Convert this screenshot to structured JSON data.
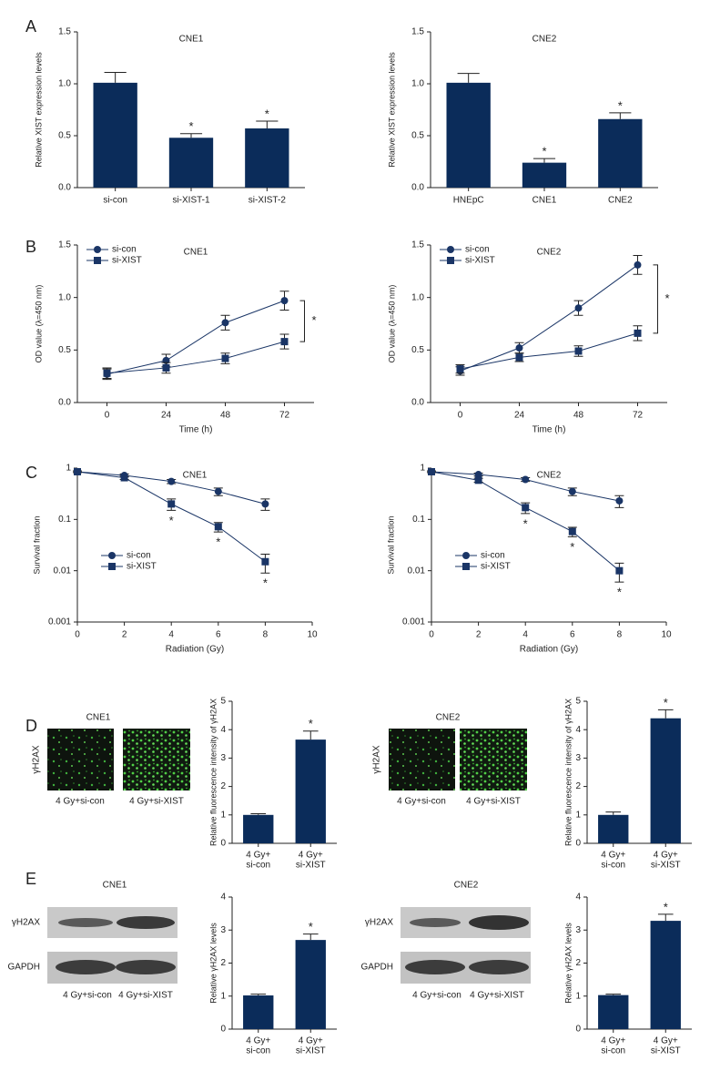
{
  "chart_data": [
    {
      "type": "bar",
      "title": "CNE1",
      "ylabel": "Relative XIST expression levels",
      "categories": [
        "si-con",
        "si-XIST-1",
        "si-XIST-2"
      ],
      "values": [
        1.01,
        0.48,
        0.57
      ],
      "errors": [
        0.1,
        0.04,
        0.07
      ],
      "significance": [
        null,
        "*",
        "*"
      ],
      "color": "#0b2c5a",
      "ylim": [
        0,
        1.5
      ],
      "yticks": [
        {
          "value": 0,
          "label": "0.0"
        },
        {
          "value": 0.5,
          "label": "0.5"
        },
        {
          "value": 1,
          "label": "1.0"
        },
        {
          "value": 1.5,
          "label": "1.5"
        }
      ]
    },
    {
      "type": "bar",
      "title": "CNE2",
      "ylabel": "Relative XIST expression levels",
      "categories": [
        "HNEpC",
        "CNE1",
        "CNE2"
      ],
      "values": [
        1.01,
        0.24,
        0.66
      ],
      "errors": [
        0.09,
        0.04,
        0.06
      ],
      "significance": [
        null,
        "*",
        "*"
      ],
      "color": "#0b2c5a",
      "ylim": [
        0,
        1.5
      ],
      "yticks": [
        {
          "value": 0,
          "label": "0.0"
        },
        {
          "value": 0.5,
          "label": "0.5"
        },
        {
          "value": 1,
          "label": "1.0"
        },
        {
          "value": 1.5,
          "label": "1.5"
        }
      ]
    },
    {
      "type": "line",
      "title": "CNE1",
      "xlabel": "Time (h)",
      "ylabel": "OD value (λ=450 nm)",
      "x": [
        0,
        24,
        48,
        72
      ],
      "series": [
        {
          "name": "si-con",
          "color": "#1a3566",
          "marker": "circle",
          "values": [
            0.27,
            0.4,
            0.76,
            0.97
          ],
          "errors": [
            0.05,
            0.06,
            0.07,
            0.09
          ]
        },
        {
          "name": "si-XIST",
          "color": "#1a3566",
          "marker": "square",
          "values": [
            0.28,
            0.33,
            0.42,
            0.58
          ],
          "errors": [
            0.05,
            0.05,
            0.05,
            0.07
          ]
        }
      ],
      "bracket": "*",
      "legend": "upper left",
      "xlim": [
        -12,
        84
      ],
      "xticks": [
        0,
        24,
        48,
        72
      ],
      "ylim": [
        0,
        1.5
      ],
      "yticks": [
        {
          "value": 0,
          "label": "0.0"
        },
        {
          "value": 0.5,
          "label": "0.5"
        },
        {
          "value": 1,
          "label": "1.0"
        },
        {
          "value": 1.5,
          "label": "1.5"
        }
      ]
    },
    {
      "type": "line",
      "title": "CNE2",
      "xlabel": "Time (h)",
      "ylabel": "OD value (λ=450 nm)",
      "x": [
        0,
        24,
        48,
        72
      ],
      "series": [
        {
          "name": "si-con",
          "color": "#1a3566",
          "marker": "circle",
          "values": [
            0.3,
            0.52,
            0.9,
            1.31
          ],
          "errors": [
            0.04,
            0.05,
            0.07,
            0.09
          ]
        },
        {
          "name": "si-XIST",
          "color": "#1a3566",
          "marker": "square",
          "values": [
            0.32,
            0.43,
            0.49,
            0.66
          ],
          "errors": [
            0.04,
            0.04,
            0.05,
            0.07
          ]
        }
      ],
      "bracket": "*",
      "legend": "upper left",
      "xlim": [
        -12,
        84
      ],
      "xticks": [
        0,
        24,
        48,
        72
      ],
      "ylim": [
        0,
        1.5
      ],
      "yticks": [
        {
          "value": 0,
          "label": "0.0"
        },
        {
          "value": 0.5,
          "label": "0.5"
        },
        {
          "value": 1,
          "label": "1.0"
        },
        {
          "value": 1.5,
          "label": "1.5"
        }
      ]
    },
    {
      "type": "line",
      "yscale": "log",
      "title": "CNE1",
      "xlabel": "Radiation (Gy)",
      "ylabel": "Survival fraction",
      "x": [
        0,
        2,
        4,
        6,
        8
      ],
      "series": [
        {
          "name": "si-con",
          "color": "#1a3566",
          "marker": "circle",
          "values": [
            0.85,
            0.72,
            0.55,
            0.35,
            0.2
          ],
          "errors": [
            0.03,
            0.05,
            0.05,
            0.06,
            0.05
          ]
        },
        {
          "name": "si-XIST",
          "color": "#1a3566",
          "marker": "square",
          "values": [
            0.85,
            0.65,
            0.2,
            0.072,
            0.015
          ],
          "errors": [
            0.03,
            0.05,
            0.05,
            0.015,
            0.006
          ],
          "significance": [
            null,
            null,
            "*",
            "*",
            "*"
          ]
        }
      ],
      "legend": "lower left",
      "xlim": [
        0,
        10
      ],
      "xticks": [
        0,
        2,
        4,
        6,
        8,
        10
      ],
      "ylim": [
        0.001,
        1
      ],
      "yticks": [
        0.001,
        0.01,
        0.1,
        1
      ]
    },
    {
      "type": "line",
      "yscale": "log",
      "title": "CNE2",
      "xlabel": "Radiation (Gy)",
      "ylabel": "Survival fraction",
      "x": [
        0,
        2,
        4,
        6,
        8
      ],
      "series": [
        {
          "name": "si-con",
          "color": "#1a3566",
          "marker": "circle",
          "values": [
            0.85,
            0.75,
            0.6,
            0.35,
            0.23
          ],
          "errors": [
            0.03,
            0.05,
            0.05,
            0.06,
            0.06
          ]
        },
        {
          "name": "si-XIST",
          "color": "#1a3566",
          "marker": "square",
          "values": [
            0.85,
            0.58,
            0.17,
            0.058,
            0.01
          ],
          "errors": [
            0.03,
            0.05,
            0.04,
            0.012,
            0.004
          ],
          "significance": [
            null,
            null,
            "*",
            "*",
            "*"
          ]
        }
      ],
      "legend": "lower left",
      "xlim": [
        0,
        10
      ],
      "xticks": [
        0,
        2,
        4,
        6,
        8,
        10
      ],
      "ylim": [
        0.001,
        1
      ],
      "yticks": [
        0.001,
        0.01,
        0.1,
        1
      ]
    },
    {
      "type": "bar",
      "ylabel": "Relative fluorescence intensity of γH2AX",
      "categories": [
        [
          "4 Gy+",
          "si-con"
        ],
        [
          "4 Gy+",
          "si-XIST"
        ]
      ],
      "values": [
        1,
        3.65
      ],
      "errors": [
        0.04,
        0.3
      ],
      "significance": [
        null,
        "*"
      ],
      "color": "#0b2c5a",
      "ylim": [
        0,
        5
      ],
      "yticks": [
        0,
        1,
        2,
        3,
        4,
        5
      ]
    },
    {
      "type": "bar",
      "ylabel": "Relative fluorescence intensity of γH2AX",
      "categories": [
        [
          "4 Gy+",
          "si-con"
        ],
        [
          "4 Gy+",
          "si-XIST"
        ]
      ],
      "values": [
        1,
        4.4
      ],
      "errors": [
        0.1,
        0.3
      ],
      "significance": [
        null,
        "*"
      ],
      "color": "#0b2c5a",
      "ylim": [
        0,
        5
      ],
      "yticks": [
        0,
        1,
        2,
        3,
        4,
        5
      ]
    },
    {
      "type": "bar",
      "ylabel": "Relative γH2AX levels",
      "categories": [
        [
          "4 Gy+",
          "si-con"
        ],
        [
          "4 Gy+",
          "si-XIST"
        ]
      ],
      "values": [
        1.02,
        2.7
      ],
      "errors": [
        0.04,
        0.18
      ],
      "significance": [
        null,
        "*"
      ],
      "color": "#0b2c5a",
      "ylim": [
        0,
        4
      ],
      "yticks": [
        0,
        1,
        2,
        3,
        4
      ]
    },
    {
      "type": "bar",
      "ylabel": "Relative γH2AX levels",
      "categories": [
        [
          "4 Gy+",
          "si-con"
        ],
        [
          "4 Gy+",
          "si-XIST"
        ]
      ],
      "values": [
        1.03,
        3.28
      ],
      "errors": [
        0.03,
        0.2
      ],
      "significance": [
        null,
        "*"
      ],
      "color": "#0b2c5a",
      "ylim": [
        0,
        4
      ],
      "yticks": [
        0,
        1,
        2,
        3,
        4
      ]
    }
  ],
  "panel_labels": [
    "A",
    "B",
    "C",
    "D",
    "E"
  ],
  "image_groups": [
    {
      "title": "CNE1",
      "row_label": "γH2AX",
      "captions": [
        "4 Gy+si-con",
        "4 Gy+si-XIST"
      ]
    },
    {
      "title": "CNE2",
      "row_label": "γH2AX",
      "captions": [
        "4 Gy+si-con",
        "4 Gy+si-XIST"
      ]
    }
  ],
  "blot_groups": [
    {
      "title": "CNE1",
      "rows": [
        "γH2AX",
        "GAPDH"
      ],
      "captions": [
        "4 Gy+si-con",
        "4 Gy+si-XIST"
      ]
    },
    {
      "title": "CNE2",
      "rows": [
        "γH2AX",
        "GAPDH"
      ],
      "captions": [
        "4 Gy+si-con",
        "4 Gy+si-XIST"
      ]
    }
  ]
}
